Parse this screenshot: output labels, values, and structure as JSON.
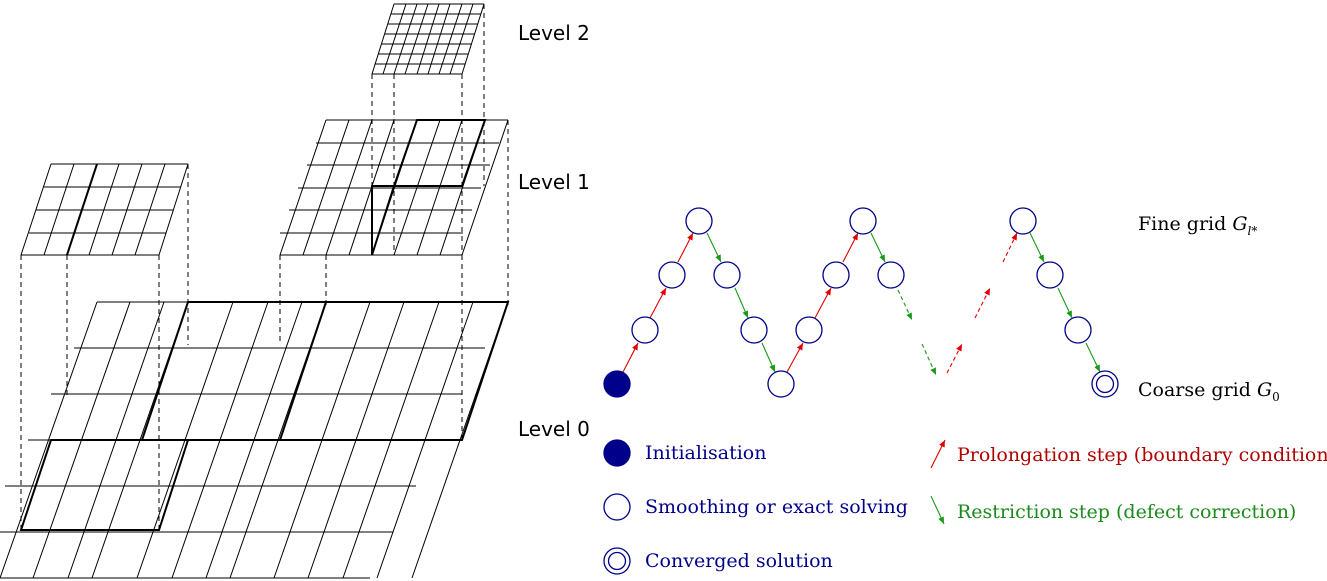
{
  "levels": {
    "level2": "Level 2",
    "level1": "Level 1",
    "level0": "Level 0"
  },
  "cycle": {
    "fine_grid_label": "Fine grid",
    "fine_grid_symbol": "G",
    "fine_grid_subscript": "l*",
    "coarse_grid_label": "Coarse grid",
    "coarse_grid_symbol": "G",
    "coarse_grid_subscript": "0"
  },
  "legend": {
    "initialisation": "Initialisation",
    "smoothing": "Smoothing or exact solving",
    "converged": "Converged solution",
    "prolongation": "Prolongation step (boundary conditions)",
    "restriction": "Restriction step (defect correction)"
  },
  "colors": {
    "node": "#00008b",
    "prolongation": "#b00000",
    "restriction": "#1a8a1a"
  }
}
